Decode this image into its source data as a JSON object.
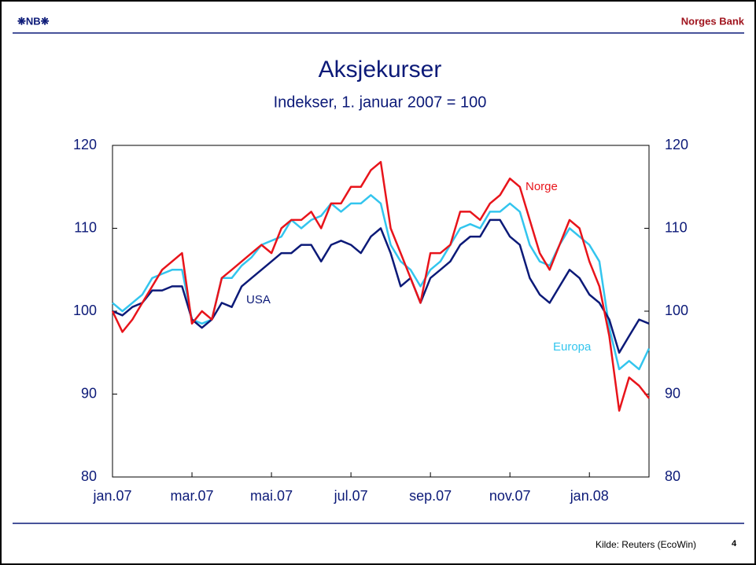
{
  "header": {
    "logo": "❋NB❋",
    "org": "Norges Bank"
  },
  "chart_data": {
    "type": "line",
    "title": "Aksjekurser",
    "subtitle": "Indekser, 1. januar 2007 = 100",
    "categories": [
      "jan.07",
      null,
      null,
      null,
      null,
      null,
      null,
      null,
      "mar.07",
      null,
      null,
      null,
      null,
      null,
      null,
      null,
      "mai.07",
      null,
      null,
      null,
      null,
      null,
      null,
      null,
      "jul.07",
      null,
      null,
      null,
      null,
      null,
      null,
      null,
      "sep.07",
      null,
      null,
      null,
      null,
      null,
      null,
      null,
      "nov.07",
      null,
      null,
      null,
      null,
      null,
      null,
      null,
      "jan.08",
      null,
      null,
      null,
      null,
      null,
      null
    ],
    "series": [
      {
        "name": "Norge",
        "color": "#e8141b",
        "values": [
          100,
          97.5,
          99,
          101,
          103,
          105,
          106,
          107,
          98.5,
          100,
          99,
          104,
          105,
          106,
          107,
          108,
          107,
          110,
          111,
          111,
          112,
          110,
          113,
          113,
          115,
          115,
          117,
          118,
          110,
          107,
          104,
          101,
          107,
          107,
          108,
          112,
          112,
          111,
          113,
          114,
          116,
          115,
          111,
          107,
          105,
          108,
          111,
          110,
          106,
          103,
          97,
          88,
          92,
          91,
          89.5
        ]
      },
      {
        "name": "USA",
        "color": "#0c1a78",
        "values": [
          100,
          99.5,
          100.5,
          101,
          102.5,
          102.5,
          103,
          103,
          99,
          98,
          99,
          101,
          100.5,
          103,
          104,
          105,
          106,
          107,
          107,
          108,
          108,
          106,
          108,
          108.5,
          108,
          107,
          109,
          110,
          107,
          103,
          104,
          101,
          104,
          105,
          106,
          108,
          109,
          109,
          111,
          111,
          109,
          108,
          104,
          102,
          101,
          103,
          105,
          104,
          102,
          101,
          99,
          95,
          97,
          99,
          98.5
        ]
      },
      {
        "name": "Europa",
        "color": "#33c5ee",
        "values": [
          101,
          100,
          101,
          102,
          104,
          104.5,
          105,
          105,
          99,
          98.5,
          99,
          104,
          104,
          105.5,
          106.5,
          108,
          108.5,
          109,
          111,
          110,
          111,
          111.5,
          113,
          112,
          113,
          113,
          114,
          113,
          108,
          106,
          105,
          103,
          105,
          106,
          108,
          110,
          110.5,
          110,
          112,
          112,
          113,
          112,
          108,
          106,
          105.5,
          108,
          110,
          109,
          108,
          106,
          98,
          93,
          94,
          93,
          95.5
        ]
      }
    ],
    "ylim": [
      80,
      120
    ],
    "yticks": [
      80,
      90,
      100,
      110,
      120
    ],
    "y2lim": [
      80,
      120
    ],
    "y2ticks": [
      80,
      90,
      100,
      110,
      120
    ]
  },
  "footer": {
    "source": "Kilde: Reuters (EcoWin)",
    "page": "4"
  }
}
